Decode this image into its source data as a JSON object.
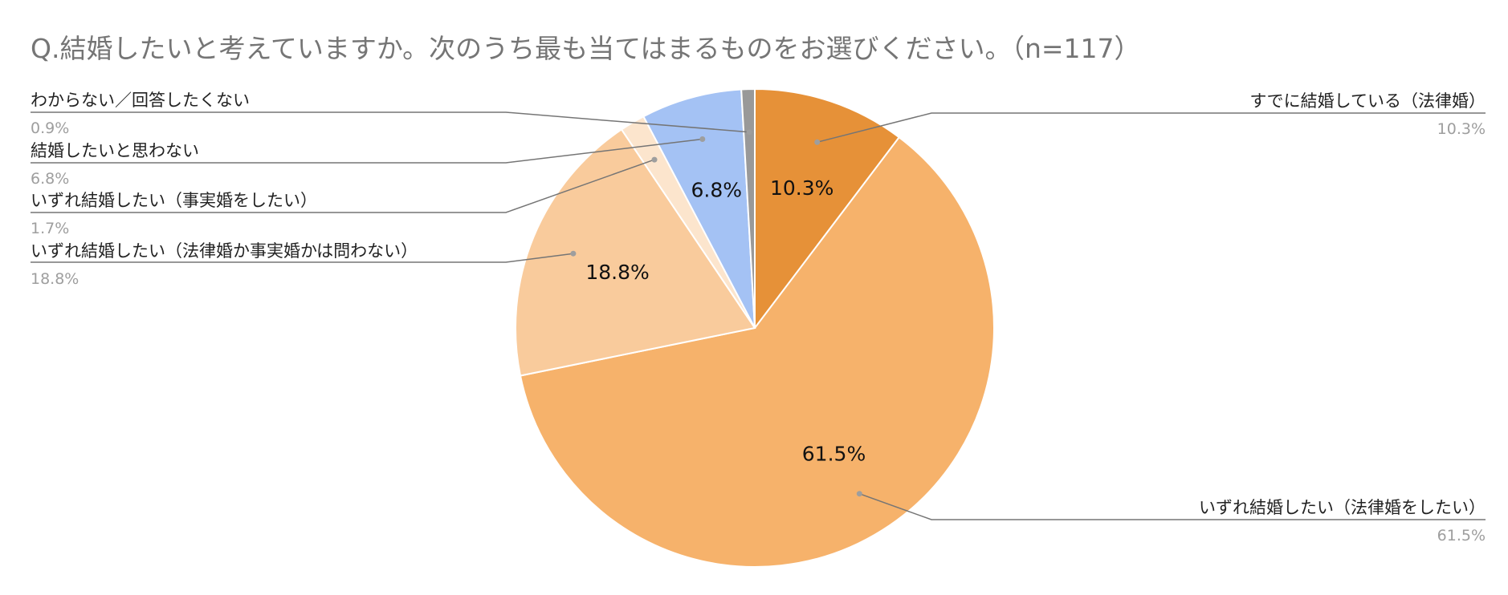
{
  "chart_data": {
    "type": "pie",
    "title": "Q.結婚したいと考えていますか。次のうち最も当てはまるものをお選びください。（n=117）",
    "slices": [
      {
        "label": "すでに結婚している（法律婚）",
        "value": 10.3,
        "value_label": "10.3%",
        "color": "#e69138",
        "legend_side": "right"
      },
      {
        "label": "いずれ結婚したい（法律婚をしたい）",
        "value": 61.5,
        "value_label": "61.5%",
        "color": "#f6b26b",
        "legend_side": "right"
      },
      {
        "label": "いずれ結婚したい（法律婚か事実婚かは問わない）",
        "value": 18.8,
        "value_label": "18.8%",
        "color": "#f9cb9c",
        "legend_side": "left"
      },
      {
        "label": "いずれ結婚したい（事実婚をしたい）",
        "value": 1.7,
        "value_label": "1.7%",
        "color": "#fce5cd",
        "legend_side": "left"
      },
      {
        "label": "結婚したいと思わない",
        "value": 6.8,
        "value_label": "6.8%",
        "color": "#a4c2f4",
        "legend_side": "left"
      },
      {
        "label": "わからない／回答したくない",
        "value": 0.9,
        "value_label": "0.9%",
        "color": "#999999",
        "legend_side": "left"
      }
    ],
    "in_slice_labels": [
      "10.3%",
      "61.5%",
      "18.8%",
      "6.8%"
    ],
    "start_angle_deg": 0,
    "direction": "clockwise",
    "leader_line_color": "#757575"
  }
}
